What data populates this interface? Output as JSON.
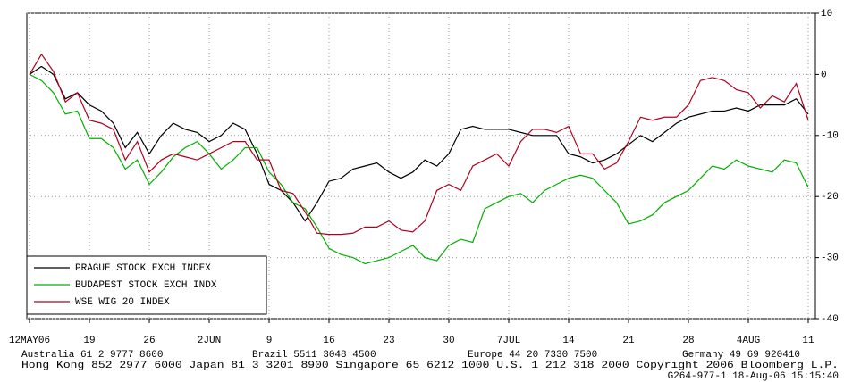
{
  "chart_data": {
    "type": "line",
    "categories": [
      "12MAY06",
      null,
      null,
      null,
      null,
      "19",
      null,
      null,
      null,
      null,
      "26",
      null,
      null,
      null,
      null,
      "2JUN",
      null,
      null,
      null,
      null,
      "9",
      null,
      null,
      null,
      null,
      "16",
      null,
      null,
      null,
      null,
      "23",
      null,
      null,
      null,
      null,
      "30",
      null,
      null,
      null,
      null,
      "7JUL",
      null,
      null,
      null,
      null,
      "14",
      null,
      null,
      null,
      null,
      "21",
      null,
      null,
      null,
      null,
      "28",
      null,
      null,
      null,
      null,
      "4AUG",
      null,
      null,
      null,
      null,
      "11"
    ],
    "series": [
      {
        "name": "PRAGUE STOCK EXCH INDEX",
        "color": "#000000",
        "values": [
          0,
          1.3,
          0,
          -4,
          -3,
          -5,
          -6,
          -8,
          -12,
          -9.5,
          -13,
          -10,
          -8,
          -9,
          -9.5,
          -11,
          -10,
          -8,
          -9,
          -13,
          -18,
          -19,
          -21,
          -24,
          -21,
          -17.5,
          -17,
          -15.5,
          -15,
          -14.5,
          -16,
          -17,
          -16,
          -14,
          -15,
          -13,
          -9,
          -8.5,
          -9,
          -9,
          -9,
          -9.5,
          -10,
          -10,
          -10,
          -13,
          -13.5,
          -14.5,
          -14,
          -13,
          -11.5,
          -10,
          -11,
          -9.5,
          -8,
          -7,
          -6.5,
          -6,
          -6,
          -5.5,
          -6,
          -5,
          -5,
          -5,
          -4,
          -6.5
        ]
      },
      {
        "name": "BUDAPEST STOCK EXCH INDX",
        "color": "#00b000",
        "values": [
          0,
          -1,
          -3,
          -6.5,
          -6,
          -10.5,
          -10.5,
          -12,
          -15.5,
          -14,
          -18,
          -16,
          -13.5,
          -12,
          -11,
          -13,
          -15.5,
          -14,
          -12,
          -12,
          -16,
          -18,
          -21,
          -22,
          -25,
          -28.5,
          -29.5,
          -30,
          -31,
          -30.5,
          -30,
          -29,
          -28,
          -30,
          -30.5,
          -28,
          -27,
          -27.5,
          -22,
          -21,
          -20,
          -19.5,
          -21,
          -19,
          -18,
          -17,
          -16.5,
          -17,
          -19,
          -21,
          -24.5,
          -24,
          -23,
          -21,
          -20,
          -19,
          -17,
          -15,
          -15.5,
          -14,
          -15,
          -15.5,
          -16,
          -14,
          -14.5,
          -18.5
        ]
      },
      {
        "name": "WSE WIG 20 INDEX",
        "color": "#b00020",
        "values": [
          0,
          3.3,
          0.5,
          -4.5,
          -3,
          -7.5,
          -8,
          -9,
          -14,
          -11,
          -16,
          -14,
          -13,
          -13.5,
          -14,
          -13,
          -12,
          -11,
          -11,
          -14,
          -14,
          -19,
          -19.5,
          -22.5,
          -26,
          -26.2,
          -26.2,
          -26,
          -25,
          -25,
          -24,
          -25.5,
          -25.8,
          -24,
          -19,
          -18,
          -19,
          -15,
          -14,
          -13,
          -15,
          -11,
          -9,
          -9,
          -9.5,
          -8.5,
          -13,
          -13,
          -15.5,
          -14.5,
          -11,
          -7,
          -7.5,
          -7,
          -7,
          -5,
          -1,
          -0.5,
          -1,
          -2.5,
          -3,
          -5.5,
          -3.5,
          -4.5,
          -1.5,
          -7.5
        ]
      }
    ],
    "ylim": [
      -40,
      10
    ],
    "yticks": [
      10,
      0,
      -10,
      -20,
      -30,
      -40
    ],
    "grid": true,
    "legend": "lower left"
  },
  "footer": {
    "line1": [
      "Australia 61 2 9777 8600",
      "Brazil 5511 3048 4500",
      "Europe 44 20 7330 7500",
      "Germany 49 69 920410"
    ],
    "line2": "Hong Kong 852 2977 6000 Japan 81 3 3201 8900 Singapore 65 6212 1000 U.S. 1 212 318 2000 Copyright 2006 Bloomberg L.P.",
    "line3": "G264-977-1 18-Aug-06 15:15:40"
  }
}
